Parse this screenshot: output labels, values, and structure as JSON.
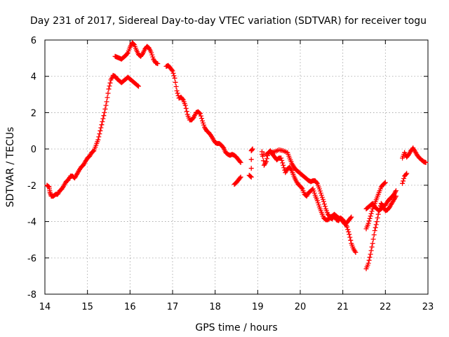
{
  "chart_data": {
    "type": "scatter",
    "title": "Day 231 of 2017, Sidereal Day-to-day VTEC variation (SDTVAR) for receiver togu",
    "xlabel": "GPS time / hours",
    "ylabel": "SDTVAR / TECUs",
    "xlim": [
      14,
      23
    ],
    "ylim": [
      -8,
      6
    ],
    "xticks": [
      14,
      15,
      16,
      17,
      18,
      19,
      20,
      21,
      22,
      23
    ],
    "yticks": [
      -8,
      -6,
      -4,
      -2,
      0,
      2,
      4,
      6
    ],
    "grid": true,
    "marker": "+",
    "series": [
      {
        "name": "SDTVAR",
        "color": "#ff0000",
        "segments": [
          [
            [
              14.05,
              -2.0
            ],
            [
              14.1,
              -2.1
            ],
            [
              14.12,
              -2.4
            ],
            [
              14.15,
              -2.6
            ],
            [
              14.2,
              -2.6
            ],
            [
              14.25,
              -2.5
            ],
            [
              14.3,
              -2.5
            ],
            [
              14.35,
              -2.3
            ],
            [
              14.4,
              -2.2
            ],
            [
              14.45,
              -2.0
            ],
            [
              14.5,
              -1.8
            ],
            [
              14.55,
              -1.7
            ],
            [
              14.6,
              -1.5
            ],
            [
              14.65,
              -1.5
            ],
            [
              14.7,
              -1.6
            ],
            [
              14.75,
              -1.4
            ],
            [
              14.8,
              -1.2
            ],
            [
              14.85,
              -1.0
            ],
            [
              14.9,
              -0.9
            ],
            [
              14.95,
              -0.7
            ],
            [
              15.0,
              -0.5
            ],
            [
              15.05,
              -0.4
            ],
            [
              15.1,
              -0.2
            ],
            [
              15.15,
              -0.1
            ],
            [
              15.2,
              0.2
            ],
            [
              15.25,
              0.5
            ],
            [
              15.3,
              1.0
            ],
            [
              15.35,
              1.5
            ],
            [
              15.4,
              2.0
            ],
            [
              15.45,
              2.6
            ],
            [
              15.5,
              3.3
            ],
            [
              15.55,
              3.8
            ],
            [
              15.6,
              4.05
            ],
            [
              15.65,
              4.0
            ],
            [
              15.7,
              3.85
            ],
            [
              15.75,
              3.75
            ],
            [
              15.8,
              3.65
            ],
            [
              15.85,
              3.75
            ],
            [
              15.9,
              3.85
            ],
            [
              15.95,
              3.95
            ],
            [
              16.0,
              3.85
            ],
            [
              16.05,
              3.75
            ],
            [
              16.1,
              3.65
            ],
            [
              16.15,
              3.55
            ],
            [
              16.2,
              3.45
            ]
          ],
          [
            [
              15.65,
              5.1
            ],
            [
              15.7,
              5.05
            ],
            [
              15.75,
              5.0
            ],
            [
              15.8,
              4.95
            ],
            [
              15.85,
              5.05
            ],
            [
              15.9,
              5.15
            ],
            [
              15.95,
              5.3
            ],
            [
              16.0,
              5.6
            ],
            [
              16.05,
              5.85
            ],
            [
              16.1,
              5.75
            ],
            [
              16.15,
              5.45
            ],
            [
              16.2,
              5.2
            ],
            [
              16.25,
              5.1
            ],
            [
              16.3,
              5.25
            ],
            [
              16.35,
              5.5
            ],
            [
              16.4,
              5.65
            ],
            [
              16.45,
              5.55
            ],
            [
              16.5,
              5.3
            ],
            [
              16.55,
              4.95
            ],
            [
              16.6,
              4.75
            ],
            [
              16.65,
              4.7
            ]
          ],
          [
            [
              16.85,
              4.55
            ],
            [
              16.9,
              4.6
            ],
            [
              16.95,
              4.45
            ],
            [
              17.0,
              4.3
            ],
            [
              17.05,
              3.9
            ],
            [
              17.1,
              3.2
            ],
            [
              17.15,
              2.8
            ],
            [
              17.2,
              2.85
            ],
            [
              17.25,
              2.7
            ],
            [
              17.3,
              2.4
            ],
            [
              17.35,
              1.9
            ],
            [
              17.4,
              1.6
            ],
            [
              17.45,
              1.6
            ],
            [
              17.5,
              1.75
            ],
            [
              17.55,
              2.0
            ],
            [
              17.6,
              2.05
            ],
            [
              17.65,
              1.95
            ],
            [
              17.7,
              1.55
            ],
            [
              17.75,
              1.2
            ],
            [
              17.8,
              1.0
            ],
            [
              17.85,
              0.9
            ],
            [
              17.9,
              0.75
            ],
            [
              17.95,
              0.55
            ],
            [
              18.0,
              0.35
            ],
            [
              18.05,
              0.3
            ],
            [
              18.1,
              0.3
            ],
            [
              18.15,
              0.2
            ],
            [
              18.2,
              0.05
            ],
            [
              18.25,
              -0.2
            ],
            [
              18.3,
              -0.3
            ],
            [
              18.35,
              -0.35
            ],
            [
              18.4,
              -0.3
            ],
            [
              18.45,
              -0.35
            ],
            [
              18.5,
              -0.45
            ],
            [
              18.55,
              -0.6
            ],
            [
              18.6,
              -0.75
            ]
          ],
          [
            [
              18.45,
              -1.95
            ],
            [
              18.5,
              -1.85
            ],
            [
              18.55,
              -1.7
            ],
            [
              18.6,
              -1.55
            ]
          ],
          [
            [
              18.8,
              -1.45
            ],
            [
              18.85,
              -1.55
            ],
            [
              18.85,
              -0.1
            ],
            [
              18.88,
              0.0
            ]
          ],
          [
            [
              19.1,
              -0.15
            ],
            [
              19.15,
              -0.9
            ],
            [
              19.2,
              -0.7
            ],
            [
              19.25,
              -0.2
            ],
            [
              19.3,
              -0.1
            ],
            [
              19.35,
              -0.3
            ],
            [
              19.4,
              -0.45
            ],
            [
              19.45,
              -0.6
            ],
            [
              19.5,
              -0.5
            ],
            [
              19.55,
              -0.5
            ],
            [
              19.6,
              -0.9
            ],
            [
              19.65,
              -1.3
            ],
            [
              19.7,
              -1.1
            ],
            [
              19.75,
              -1.0
            ],
            [
              19.8,
              -1.2
            ],
            [
              19.85,
              -1.5
            ],
            [
              19.9,
              -1.75
            ],
            [
              19.95,
              -1.95
            ],
            [
              20.0,
              -2.05
            ],
            [
              20.05,
              -2.2
            ],
            [
              20.1,
              -2.5
            ],
            [
              20.15,
              -2.6
            ],
            [
              20.2,
              -2.4
            ],
            [
              20.25,
              -2.3
            ],
            [
              20.3,
              -2.2
            ],
            [
              20.35,
              -2.55
            ],
            [
              20.4,
              -2.85
            ],
            [
              20.45,
              -3.2
            ],
            [
              20.5,
              -3.5
            ],
            [
              20.55,
              -3.8
            ],
            [
              20.6,
              -3.9
            ],
            [
              20.65,
              -3.9
            ],
            [
              20.7,
              -3.8
            ],
            [
              20.75,
              -3.85
            ],
            [
              20.8,
              -3.7
            ],
            [
              20.85,
              -3.9
            ],
            [
              20.9,
              -3.95
            ],
            [
              20.95,
              -3.8
            ],
            [
              21.0,
              -3.9
            ],
            [
              21.05,
              -4.05
            ],
            [
              21.1,
              -4.3
            ],
            [
              21.15,
              -4.7
            ],
            [
              21.2,
              -5.2
            ],
            [
              21.25,
              -5.5
            ],
            [
              21.3,
              -5.7
            ]
          ],
          [
            [
              19.1,
              -0.3
            ],
            [
              19.2,
              -0.3
            ],
            [
              19.3,
              -0.2
            ],
            [
              19.4,
              -0.15
            ],
            [
              19.5,
              -0.05
            ],
            [
              19.6,
              -0.1
            ],
            [
              19.7,
              -0.2
            ],
            [
              19.75,
              -0.5
            ],
            [
              19.8,
              -0.8
            ],
            [
              19.85,
              -1.0
            ],
            [
              19.9,
              -1.15
            ],
            [
              19.95,
              -1.25
            ],
            [
              20.0,
              -1.35
            ],
            [
              20.05,
              -1.45
            ],
            [
              20.1,
              -1.55
            ],
            [
              20.15,
              -1.65
            ],
            [
              20.2,
              -1.75
            ],
            [
              20.25,
              -1.8
            ],
            [
              20.3,
              -1.75
            ],
            [
              20.35,
              -1.75
            ],
            [
              20.4,
              -1.9
            ],
            [
              20.45,
              -2.2
            ],
            [
              20.5,
              -2.55
            ],
            [
              20.55,
              -2.9
            ],
            [
              20.6,
              -3.3
            ],
            [
              20.65,
              -3.6
            ],
            [
              20.7,
              -3.75
            ],
            [
              20.75,
              -3.7
            ],
            [
              20.8,
              -3.6
            ],
            [
              20.85,
              -3.7
            ],
            [
              20.9,
              -3.8
            ],
            [
              20.95,
              -3.85
            ],
            [
              21.0,
              -4.0
            ],
            [
              21.05,
              -4.15
            ],
            [
              21.1,
              -4.05
            ],
            [
              21.15,
              -3.9
            ],
            [
              21.2,
              -3.75
            ]
          ],
          [
            [
              21.55,
              -6.6
            ],
            [
              21.6,
              -6.3
            ],
            [
              21.65,
              -5.8
            ],
            [
              21.7,
              -5.2
            ],
            [
              21.75,
              -4.5
            ],
            [
              21.8,
              -4.0
            ],
            [
              21.85,
              -3.4
            ],
            [
              21.9,
              -3.0
            ],
            [
              21.95,
              -3.15
            ],
            [
              22.0,
              -3.1
            ],
            [
              22.05,
              -2.9
            ],
            [
              22.1,
              -2.75
            ],
            [
              22.15,
              -2.65
            ],
            [
              22.2,
              -2.5
            ],
            [
              22.25,
              -2.3
            ]
          ],
          [
            [
              21.55,
              -4.4
            ],
            [
              21.6,
              -4.1
            ],
            [
              21.65,
              -3.7
            ],
            [
              21.7,
              -3.3
            ],
            [
              21.75,
              -3.0
            ],
            [
              21.8,
              -2.7
            ],
            [
              21.85,
              -2.4
            ],
            [
              21.9,
              -2.1
            ],
            [
              21.95,
              -1.95
            ],
            [
              22.0,
              -1.85
            ]
          ],
          [
            [
              21.55,
              -3.3
            ],
            [
              21.6,
              -3.2
            ],
            [
              21.65,
              -3.1
            ],
            [
              21.7,
              -3.0
            ],
            [
              21.75,
              -3.2
            ],
            [
              21.8,
              -3.3
            ],
            [
              21.85,
              -3.4
            ],
            [
              21.9,
              -3.3
            ],
            [
              21.95,
              -3.2
            ],
            [
              22.0,
              -3.4
            ],
            [
              22.05,
              -3.35
            ],
            [
              22.1,
              -3.2
            ],
            [
              22.15,
              -3.0
            ],
            [
              22.2,
              -2.8
            ],
            [
              22.25,
              -2.6
            ]
          ],
          [
            [
              22.4,
              -1.9
            ],
            [
              22.45,
              -1.5
            ],
            [
              22.5,
              -1.35
            ]
          ],
          [
            [
              22.4,
              -0.5
            ],
            [
              22.45,
              -0.2
            ],
            [
              22.5,
              -0.45
            ],
            [
              22.55,
              -0.3
            ],
            [
              22.6,
              -0.1
            ],
            [
              22.65,
              0.05
            ],
            [
              22.7,
              -0.15
            ],
            [
              22.75,
              -0.35
            ],
            [
              22.8,
              -0.5
            ],
            [
              22.85,
              -0.6
            ],
            [
              22.9,
              -0.7
            ],
            [
              22.95,
              -0.75
            ]
          ]
        ]
      }
    ]
  }
}
